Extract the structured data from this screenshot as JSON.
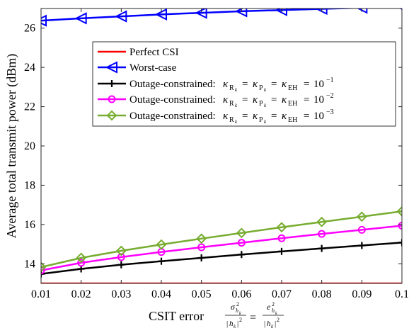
{
  "chart_data": {
    "type": "line",
    "xlabel_prefix": "CSIT error",
    "ylabel": "Average total transmit power (dBm)",
    "xlim": [
      0.01,
      0.1
    ],
    "ylim": [
      13,
      27
    ],
    "xticks": [
      0.01,
      0.02,
      0.03,
      0.04,
      0.05,
      0.06,
      0.07,
      0.08,
      0.09,
      0.1
    ],
    "xtick_labels": [
      "0.01",
      "0.02",
      "0.03",
      "0.04",
      "0.05",
      "0.06",
      "0.07",
      "0.08",
      "0.09",
      "0.1"
    ],
    "yticks": [
      14,
      16,
      18,
      20,
      22,
      24,
      26
    ],
    "ytick_labels": [
      "14",
      "16",
      "18",
      "20",
      "22",
      "24",
      "26"
    ],
    "grid": false,
    "legend_position": "upper-left",
    "x": [
      0.01,
      0.02,
      0.03,
      0.04,
      0.05,
      0.06,
      0.07,
      0.08,
      0.09,
      0.1
    ],
    "series": [
      {
        "name": "Perfect CSI",
        "color": "#ff0000",
        "marker": "none",
        "values": [
          13.0,
          13.0,
          13.0,
          13.0,
          13.0,
          13.0,
          13.0,
          13.0,
          13.0,
          13.0
        ]
      },
      {
        "name": "Worst-case",
        "color": "#0000ff",
        "marker": "triangle-left",
        "values": [
          26.38,
          26.5,
          26.6,
          26.7,
          26.78,
          26.86,
          26.92,
          26.98,
          27.04,
          27.1
        ]
      },
      {
        "name": "Outage-constrained:",
        "legend_value": "10",
        "legend_exp": "−1",
        "color": "#000000",
        "marker": "plus",
        "values": [
          13.48,
          13.74,
          13.95,
          14.13,
          14.3,
          14.47,
          14.63,
          14.78,
          14.93,
          15.08
        ]
      },
      {
        "name": "Outage-constrained:",
        "legend_value": "10",
        "legend_exp": "−2",
        "color": "#ff00ff",
        "marker": "circle",
        "values": [
          13.66,
          14.05,
          14.34,
          14.6,
          14.84,
          15.07,
          15.3,
          15.52,
          15.73,
          15.94
        ]
      },
      {
        "name": "Outage-constrained:",
        "legend_value": "10",
        "legend_exp": "−3",
        "color": "#77ac30",
        "marker": "diamond",
        "values": [
          13.83,
          14.3,
          14.66,
          14.98,
          15.28,
          15.57,
          15.86,
          16.13,
          16.4,
          16.67
        ]
      }
    ]
  }
}
